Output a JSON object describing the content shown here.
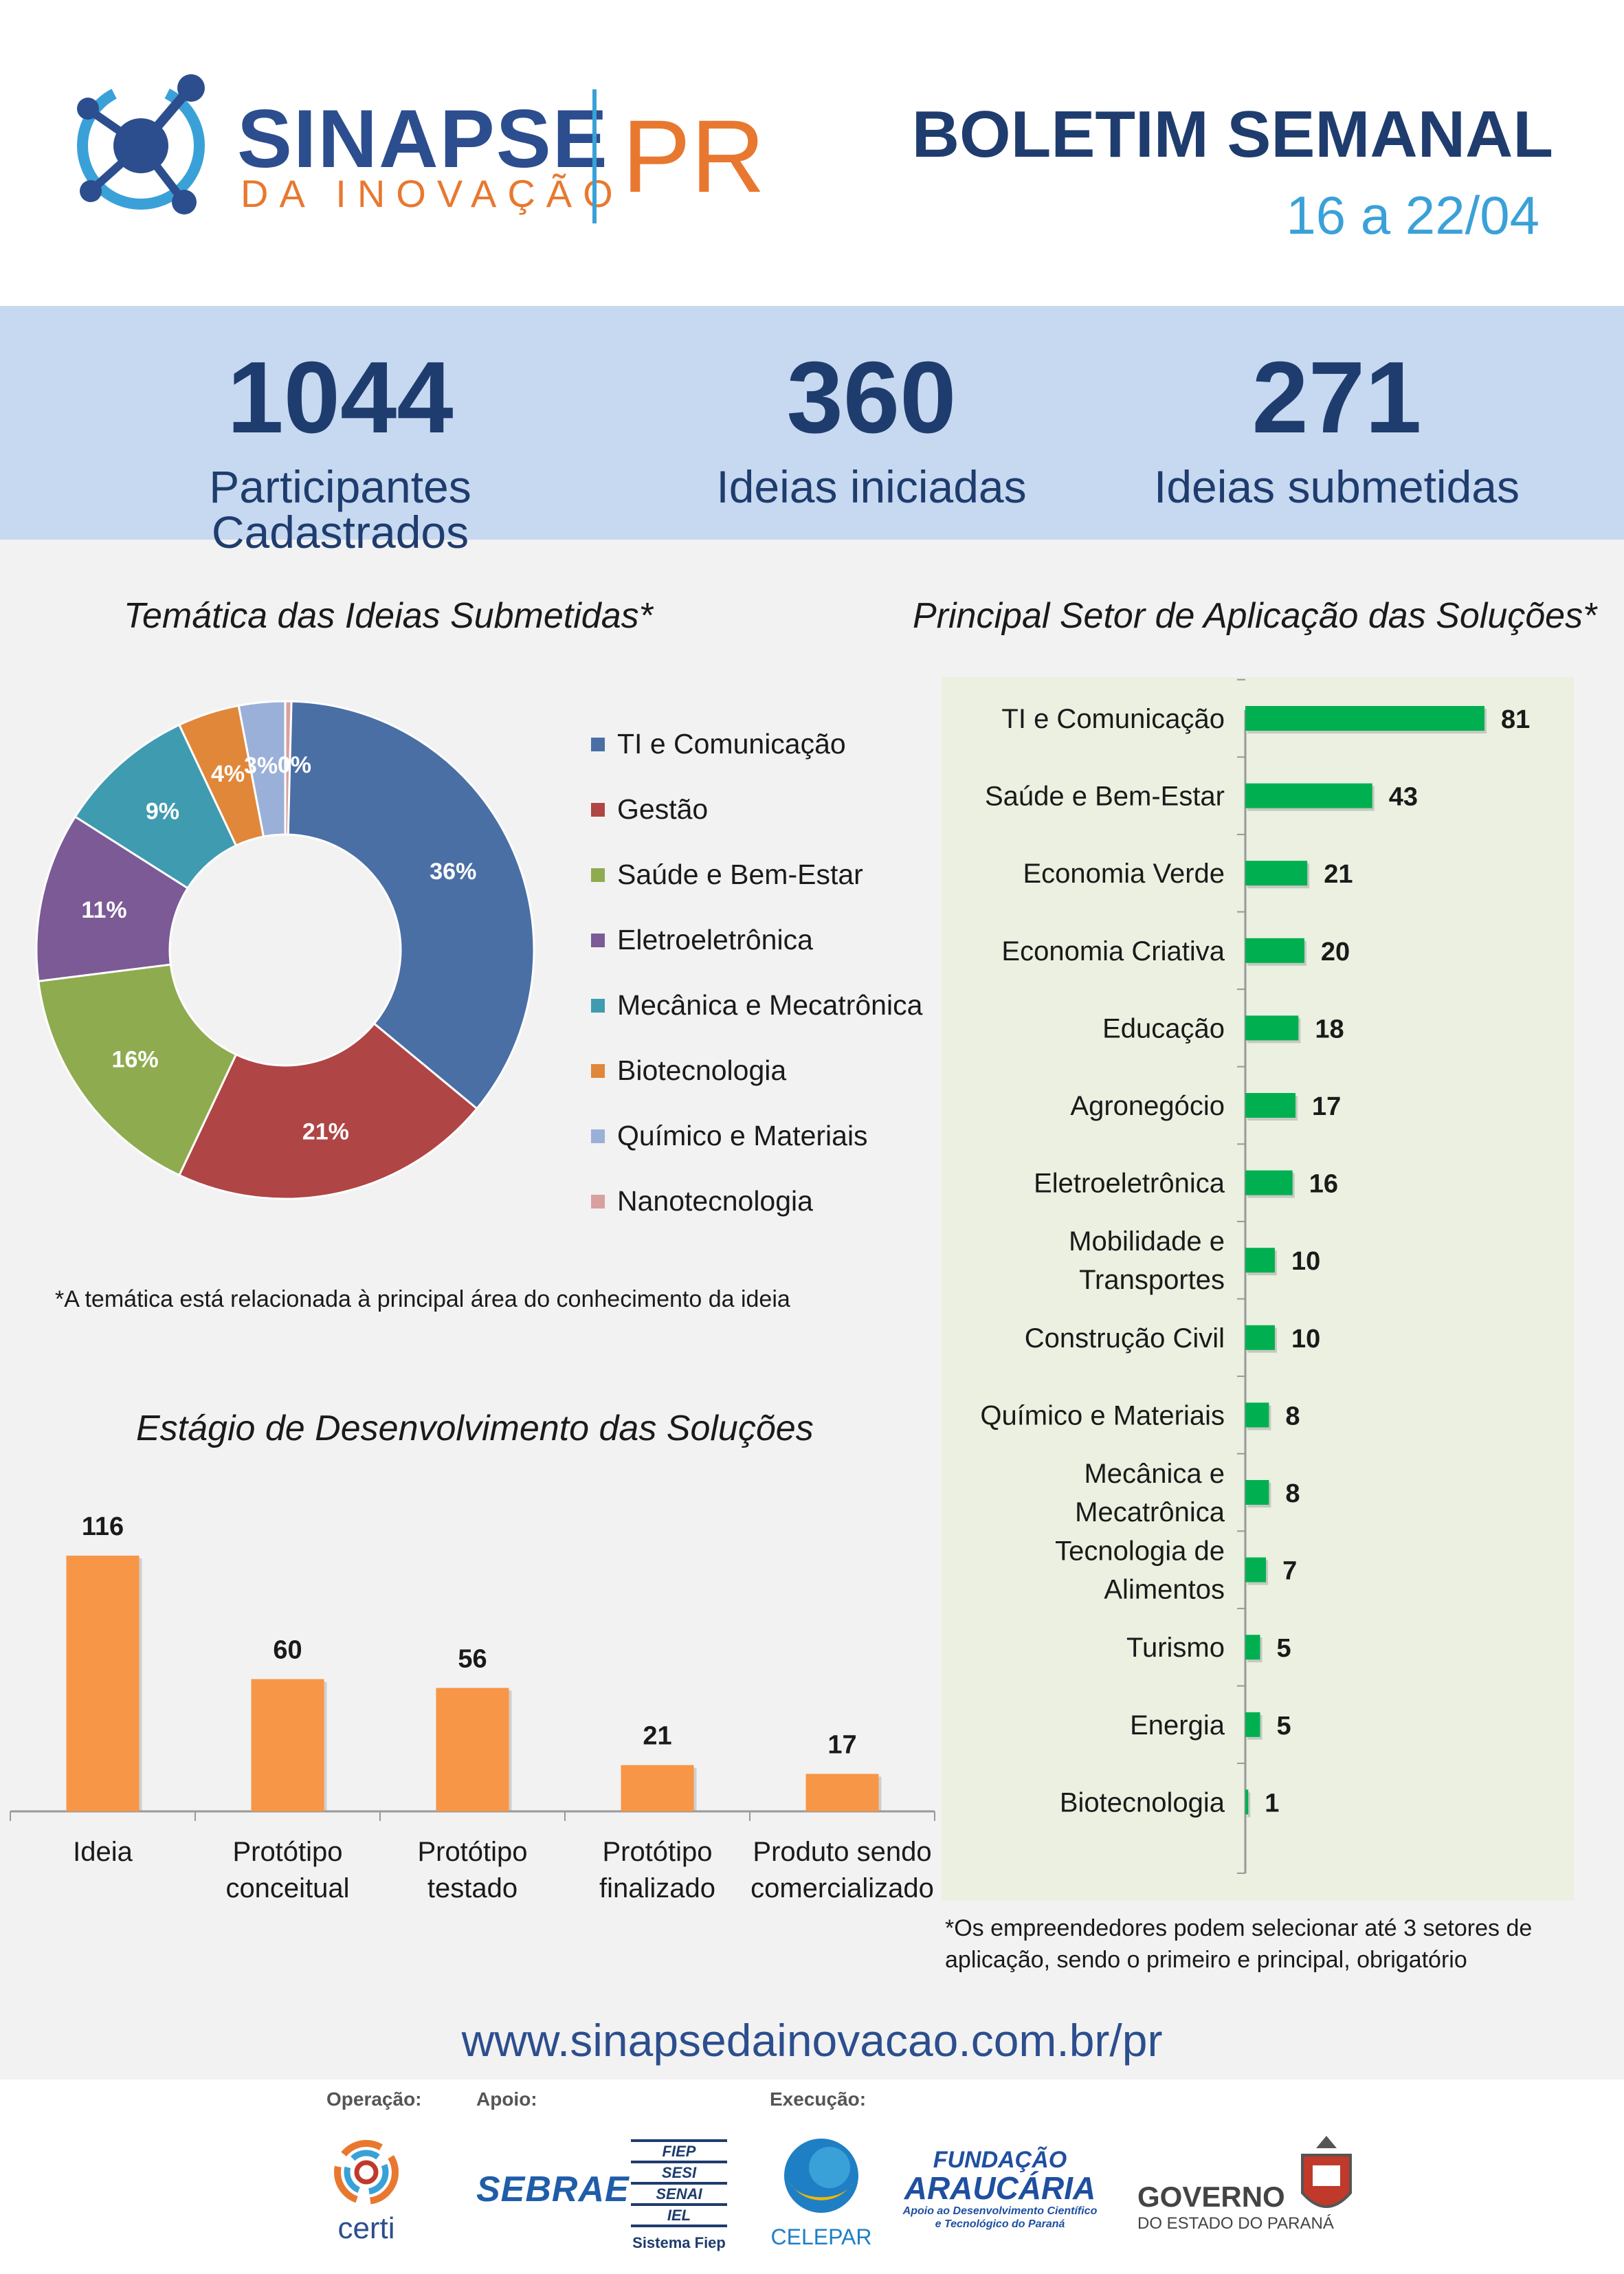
{
  "header": {
    "brand_name": "SINAPSE",
    "brand_sub": "DA INOVAÇÃO",
    "brand_region": "PR",
    "bulletin_title": "BOLETIM SEMANAL",
    "bulletin_date": "16 a 22/04"
  },
  "stats": [
    {
      "value": "1044",
      "label": "Participantes Cadastrados"
    },
    {
      "value": "360",
      "label": "Ideias iniciadas"
    },
    {
      "value": "271",
      "label": "Ideias submetidas"
    }
  ],
  "theme_note": "*A temática está relacionada à principal área do conhecimento da ideia",
  "sector_note": "*Os empreendedores podem selecionar até 3 setores de aplicação, sendo o primeiro e principal, obrigatório",
  "footer": {
    "url": "www.sinapsedainovacao.com.br/pr",
    "operacao_label": "Operação:",
    "apoio_label": "Apoio:",
    "execucao_label": "Execução:",
    "partners": {
      "certi": "certi",
      "sebrae": "SEBRAE",
      "fiep_lines": [
        "FIEP",
        "SESI",
        "SENAI",
        "IEL"
      ],
      "fiep_caption": "Sistema Fiep",
      "celepar": "CELEPAR",
      "fundacao_line1": "FUNDAÇÃO",
      "fundacao_line2": "ARAUCÁRIA",
      "fundacao_line3": "Apoio ao Desenvolvimento Científico",
      "fundacao_line4": "e Tecnológico do Paraná",
      "governo_line1": "GOVERNO",
      "governo_line2": "DO ESTADO DO PARANÁ"
    }
  },
  "colors": {
    "navy": "#1f3c6e",
    "sky": "#3aa1d8",
    "orange": "#e8782f",
    "stats_band": "#c6d9f0",
    "sector_panel": "#ebf0e1",
    "sector_bar": "#00b050",
    "stage_bar": "#f79646"
  },
  "chart_data": [
    {
      "type": "pie",
      "title": "Temática das Ideias Submetidas*",
      "categories": [
        "TI e Comunicação",
        "Gestão",
        "Saúde e Bem-Estar",
        "Eletroeletrônica",
        "Mecânica e Mecatrônica",
        "Biotecnologia",
        "Químico e Materiais",
        "Nanotecnologia"
      ],
      "values": [
        36,
        21,
        16,
        11,
        9,
        4,
        3,
        0
      ],
      "labels": [
        "36%",
        "21%",
        "16%",
        "11%",
        "9%",
        "4%",
        "3%",
        "0%"
      ],
      "colors": [
        "#4a6fa5",
        "#b04545",
        "#8fab4f",
        "#7b5a96",
        "#3f9bb0",
        "#e0873a",
        "#9bb0d8",
        "#d9a0a0"
      ],
      "legend": "right"
    },
    {
      "type": "bar",
      "orientation": "horizontal",
      "title": "Principal Setor de Aplicação das Soluções*",
      "categories": [
        "TI e Comunicação",
        "Saúde e Bem-Estar",
        "Economia Verde",
        "Economia Criativa",
        "Educação",
        "Agronegócio",
        "Eletroeletrônica",
        "Mobilidade e Transportes",
        "Construção Civil",
        "Químico e Materiais",
        "Mecânica e Mecatrônica",
        "Tecnologia de Alimentos",
        "Turismo",
        "Energia",
        "Biotecnologia"
      ],
      "category_lines": [
        [
          "TI e Comunicação"
        ],
        [
          "Saúde e Bem-Estar"
        ],
        [
          "Economia Verde"
        ],
        [
          "Economia Criativa"
        ],
        [
          "Educação"
        ],
        [
          "Agronegócio"
        ],
        [
          "Eletroeletrônica"
        ],
        [
          "Mobilidade e",
          "Transportes"
        ],
        [
          "Construção Civil"
        ],
        [
          "Químico e Materiais"
        ],
        [
          "Mecânica e",
          "Mecatrônica"
        ],
        [
          "Tecnologia de",
          "Alimentos"
        ],
        [
          "Turismo"
        ],
        [
          "Energia"
        ],
        [
          "Biotecnologia"
        ]
      ],
      "values": [
        81,
        43,
        21,
        20,
        18,
        17,
        16,
        10,
        10,
        8,
        8,
        7,
        5,
        5,
        1
      ],
      "xlim": [
        0,
        81
      ]
    },
    {
      "type": "bar",
      "title": "Estágio de Desenvolvimento das Soluções",
      "categories": [
        "Ideia",
        "Protótipo conceitual",
        "Protótipo testado",
        "Protótipo finalizado",
        "Produto sendo comercializado"
      ],
      "category_lines": [
        [
          "Ideia"
        ],
        [
          "Protótipo",
          "conceitual"
        ],
        [
          "Protótipo",
          "testado"
        ],
        [
          "Protótipo",
          "finalizado"
        ],
        [
          "Produto sendo",
          "comercializado"
        ]
      ],
      "values": [
        116,
        60,
        56,
        21,
        17
      ],
      "ylim": [
        0,
        116
      ]
    }
  ]
}
